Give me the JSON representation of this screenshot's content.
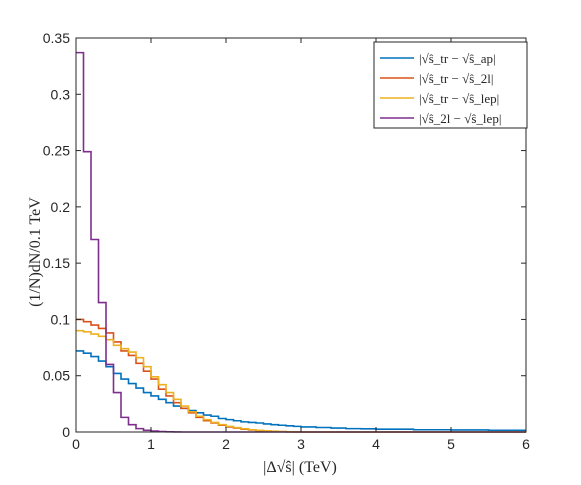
{
  "chart_data": {
    "type": "line",
    "drawstyle": "steps",
    "xlabel": "|Δ√ŝ| (TeV)",
    "ylabel": "(1/N)dN/0.1 TeV",
    "xlim": [
      0,
      6
    ],
    "ylim": [
      0,
      0.35
    ],
    "xticks": [
      "0",
      "1",
      "2",
      "3",
      "4",
      "5",
      "6"
    ],
    "yticks": [
      "0",
      "0.05",
      "0.1",
      "0.15",
      "0.2",
      "0.25",
      "0.3",
      "0.35"
    ],
    "grid": false,
    "legend_position": "top-right",
    "x": [
      0.0,
      0.1,
      0.2,
      0.3,
      0.4,
      0.5,
      0.6,
      0.7,
      0.8,
      0.9,
      1.0,
      1.1,
      1.2,
      1.3,
      1.4,
      1.5,
      1.6,
      1.7,
      1.8,
      1.9,
      2.0,
      2.1,
      2.2,
      2.3,
      2.4,
      2.5,
      2.6,
      2.7,
      2.8,
      2.9,
      3.0,
      3.2,
      3.4,
      3.6,
      3.8,
      4.0,
      4.5,
      5.0,
      5.5,
      6.0
    ],
    "series": [
      {
        "name": "|√ŝ_tr − √ŝ_ap|",
        "color": "#0072BD",
        "values": [
          0.072,
          0.07,
          0.067,
          0.063,
          0.058,
          0.052,
          0.047,
          0.043,
          0.039,
          0.035,
          0.032,
          0.029,
          0.026,
          0.023,
          0.021,
          0.019,
          0.017,
          0.015,
          0.014,
          0.012,
          0.011,
          0.01,
          0.009,
          0.0085,
          0.008,
          0.0072,
          0.0065,
          0.006,
          0.0055,
          0.005,
          0.0045,
          0.004,
          0.0035,
          0.003,
          0.0028,
          0.0025,
          0.002,
          0.0018,
          0.0015,
          0.0015
        ]
      },
      {
        "name": "|√ŝ_tr − √ŝ_2l|",
        "color": "#D95319",
        "values": [
          0.1,
          0.098,
          0.095,
          0.092,
          0.088,
          0.08,
          0.072,
          0.068,
          0.061,
          0.054,
          0.047,
          0.038,
          0.032,
          0.026,
          0.021,
          0.017,
          0.013,
          0.01,
          0.008,
          0.006,
          0.0045,
          0.0035,
          0.0025,
          0.0018,
          0.0012,
          0.0008,
          0.0005,
          0.0003,
          0.0002,
          0.0001,
          0.0,
          0.0,
          0.0,
          0.0,
          0.0,
          0.0,
          0.0,
          0.0,
          0.0,
          0.0
        ]
      },
      {
        "name": "|√ŝ_tr − √ŝ_lep|",
        "color": "#EDB120",
        "values": [
          0.09,
          0.089,
          0.087,
          0.085,
          0.082,
          0.077,
          0.074,
          0.071,
          0.066,
          0.058,
          0.049,
          0.042,
          0.035,
          0.029,
          0.023,
          0.018,
          0.014,
          0.011,
          0.0085,
          0.0065,
          0.005,
          0.0038,
          0.0028,
          0.002,
          0.0014,
          0.001,
          0.0007,
          0.0004,
          0.0002,
          0.0001,
          0.0,
          0.0,
          0.0,
          0.0,
          0.0,
          0.0,
          0.0,
          0.0,
          0.0,
          0.0
        ]
      },
      {
        "name": "|√ŝ_2l − √ŝ_lep|",
        "color": "#7E2F8E",
        "values": [
          0.337,
          0.249,
          0.171,
          0.115,
          0.06,
          0.035,
          0.013,
          0.0065,
          0.003,
          0.0015,
          0.0008,
          0.0004,
          0.0002,
          0.0001,
          0.0,
          0.0,
          0.0,
          0.0,
          0.0,
          0.0,
          0.0,
          0.0,
          0.0,
          0.0,
          0.0,
          0.0,
          0.0,
          0.0,
          0.0,
          0.0,
          0.0,
          0.0,
          0.0,
          0.0,
          0.0,
          0.0,
          0.0,
          0.0,
          0.0,
          0.0
        ]
      }
    ]
  }
}
